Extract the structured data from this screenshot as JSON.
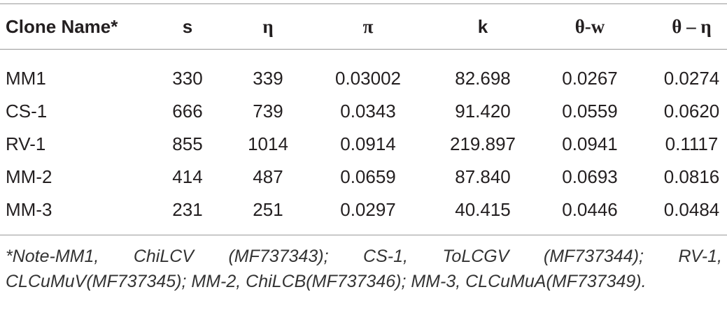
{
  "table": {
    "header": [
      "Clone Name*",
      "s",
      "η",
      "π",
      "k",
      "θ-w",
      "θ – η"
    ],
    "rows": [
      [
        "MM1",
        "330",
        "339",
        "0.03002",
        "82.698",
        "0.0267",
        "0.0274"
      ],
      [
        "CS-1",
        "666",
        "739",
        "0.0343",
        "91.420",
        "0.0559",
        "0.0620"
      ],
      [
        "RV-1",
        "855",
        "1014",
        "0.0914",
        "219.897",
        "0.0941",
        "0.1117"
      ],
      [
        "MM-2",
        "414",
        "487",
        "0.0659",
        "87.840",
        "0.0693",
        "0.0816"
      ],
      [
        "MM-3",
        "231",
        "251",
        "0.0297",
        "40.415",
        "0.0446",
        "0.0484"
      ]
    ],
    "note": "*Note-MM1, ChiLCV (MF737343); CS-1, ToLCGV (MF737344); RV-1, CLCuMuV(MF737345); MM-2, ChiLCB(MF737346); MM-3, CLCuMuA(MF737349)."
  }
}
